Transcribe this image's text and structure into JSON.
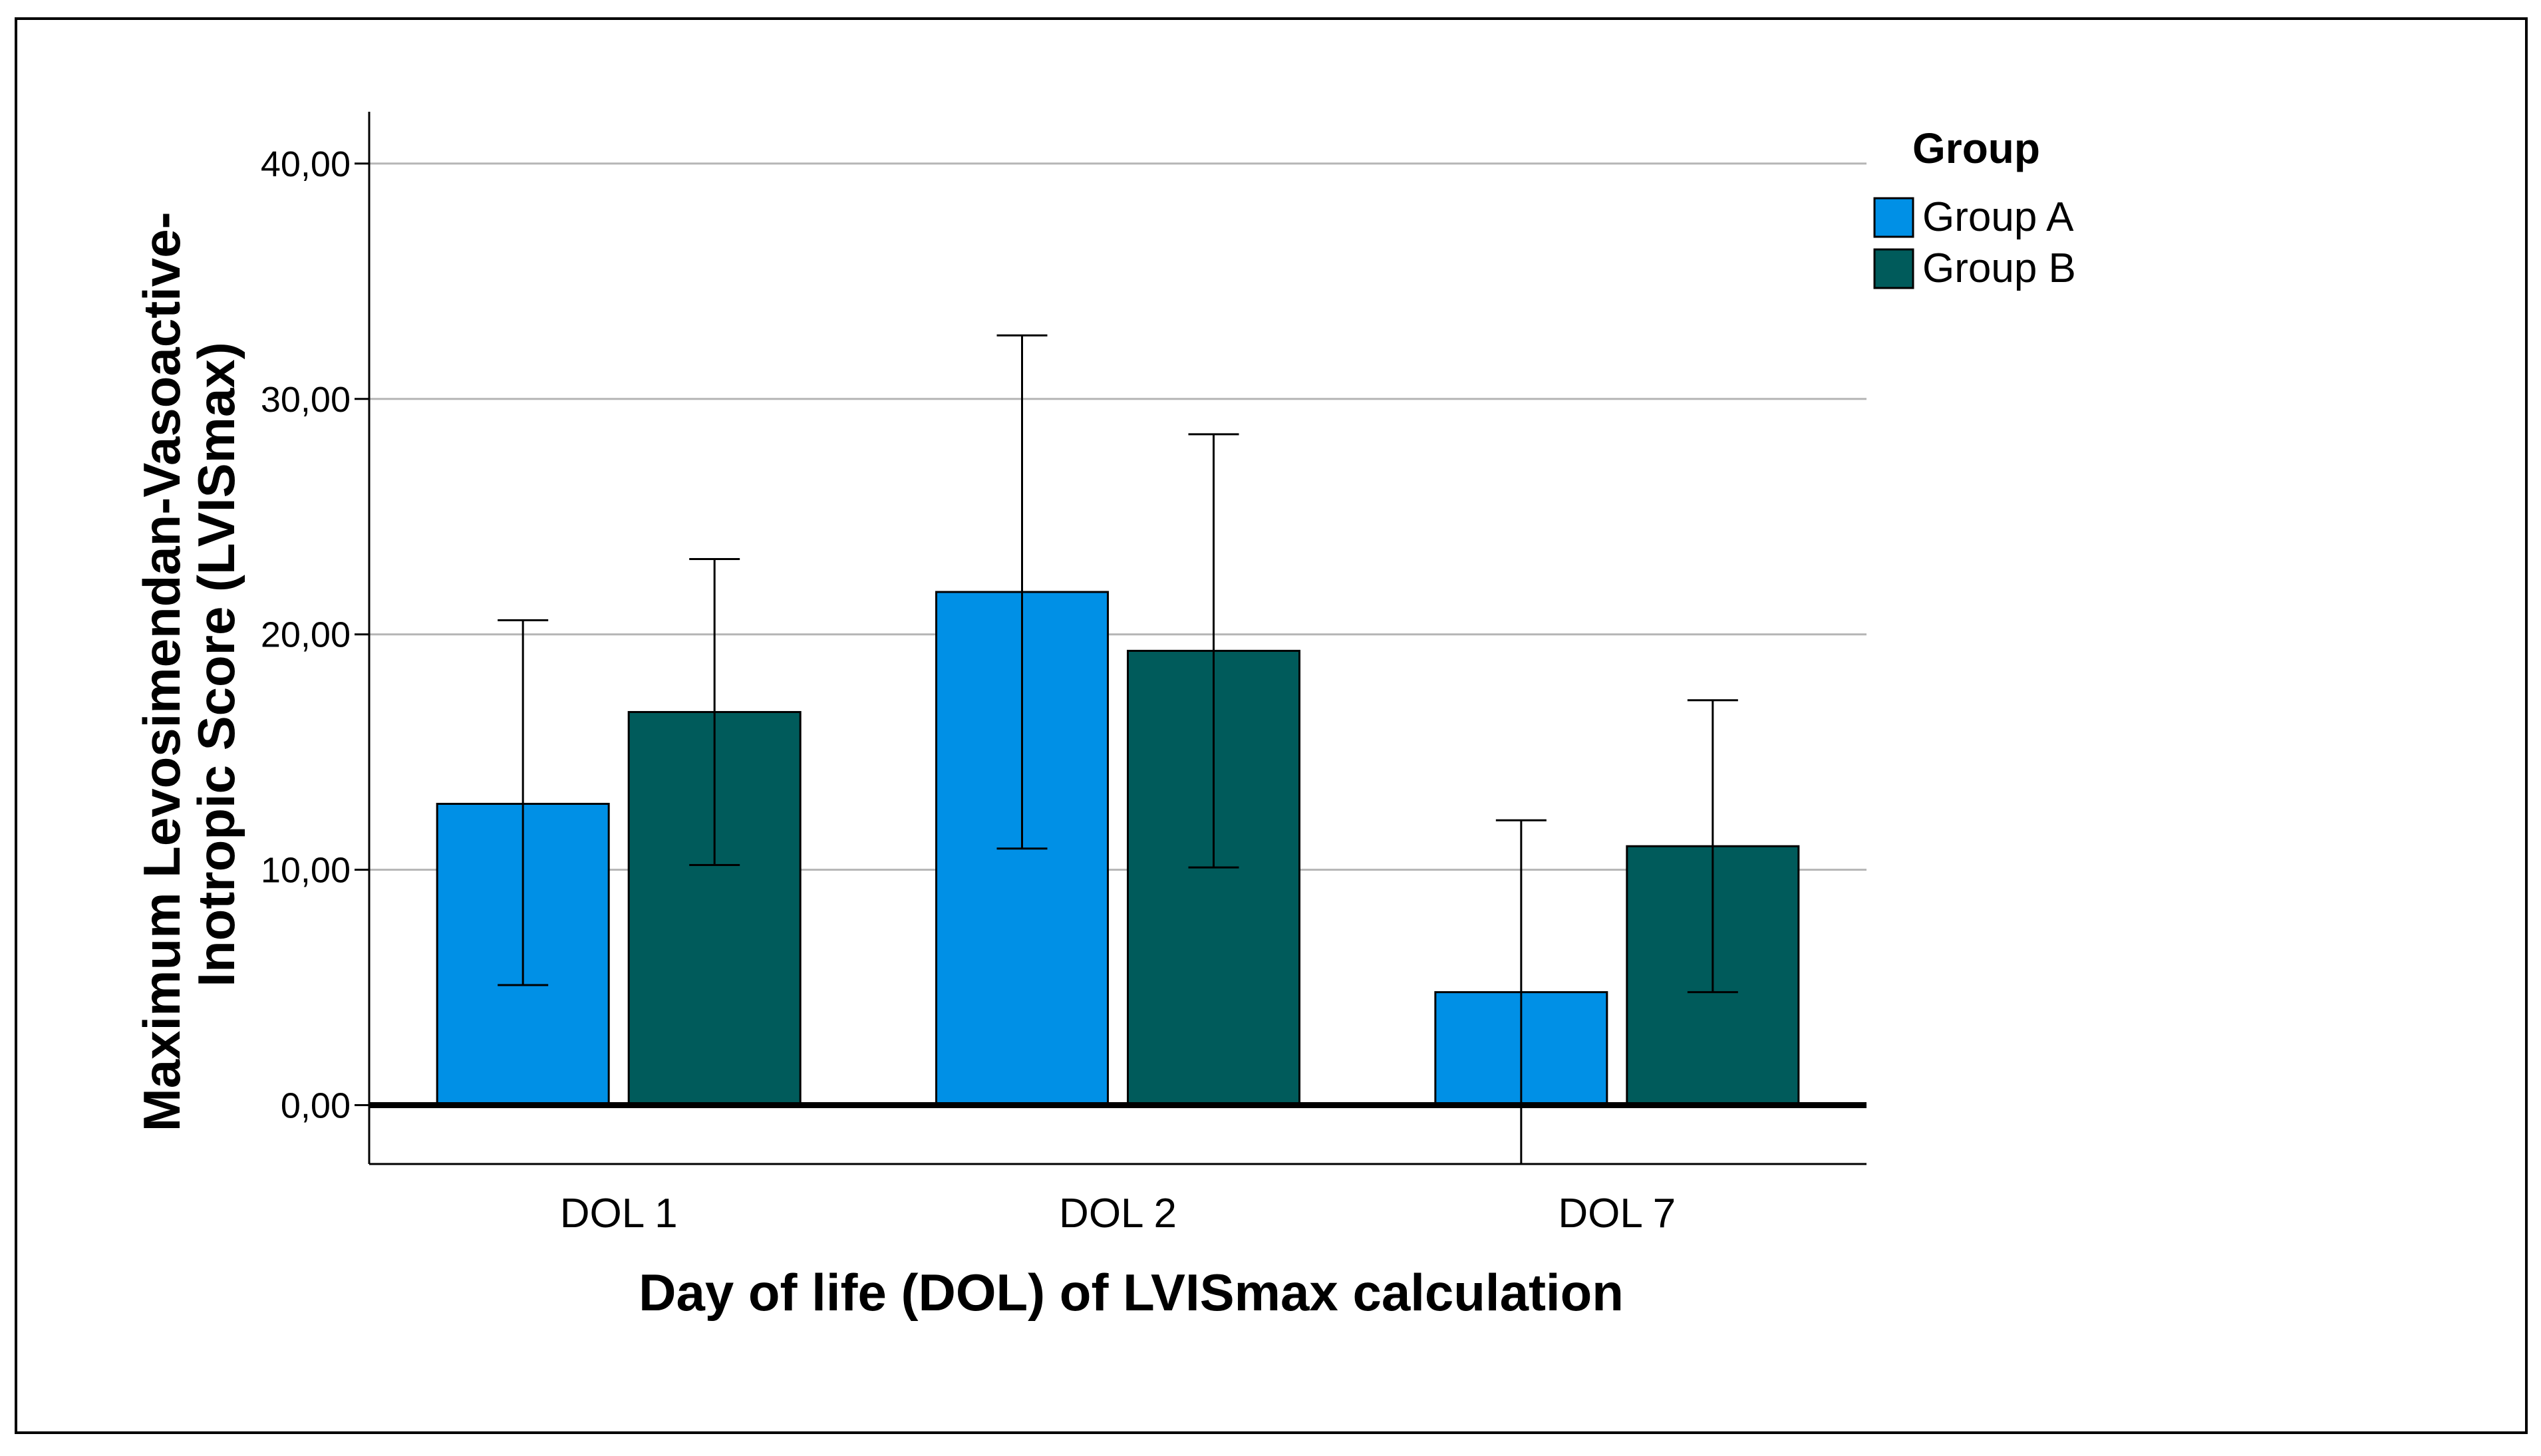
{
  "chart_data": {
    "type": "bar",
    "title": "",
    "xlabel": "Day of life (DOL) of LVISmax calculation",
    "ylabel_line1": "Maximum Levosimendan-Vasoactive-",
    "ylabel_line2": "Inotropic Score (LVISmax)",
    "categories": [
      "DOL 1",
      "DOL 2",
      "DOL 7"
    ],
    "ylim": [
      -2.5,
      42.2
    ],
    "yticks": [
      0,
      10,
      20,
      30,
      40
    ],
    "ytick_labels": [
      "0,00",
      "10,00",
      "20,00",
      "30,00",
      "40,00"
    ],
    "grid": true,
    "legend": {
      "title": "Group",
      "position": "top-right"
    },
    "series": [
      {
        "name": "Group A",
        "color": "#0090E6",
        "values": [
          12.8,
          21.8,
          4.8
        ],
        "error_low": [
          5.1,
          10.9,
          -2.5
        ],
        "error_high": [
          20.6,
          32.7,
          12.1
        ]
      },
      {
        "name": "Group B",
        "color": "#005B5B",
        "values": [
          16.7,
          19.3,
          11.0
        ],
        "error_low": [
          10.2,
          10.1,
          4.8
        ],
        "error_high": [
          23.2,
          28.5,
          17.2
        ]
      }
    ]
  }
}
